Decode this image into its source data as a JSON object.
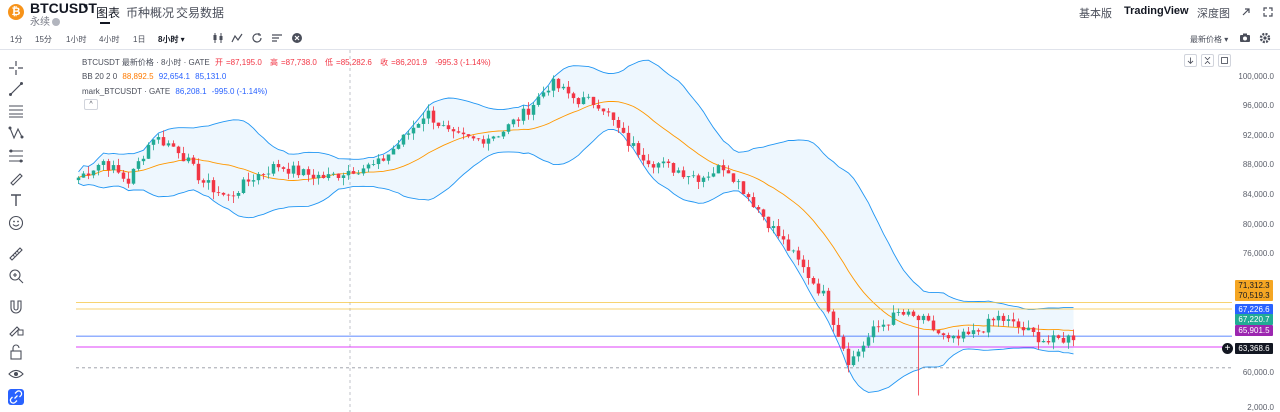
{
  "header": {
    "coin_logo_glyph": "₿",
    "symbol": "BTCUSDT",
    "symbol_caret": "▾",
    "sub_label": "永续",
    "tabs": [
      {
        "label": "图表",
        "active": true
      },
      {
        "label": "币种概况",
        "active": false
      },
      {
        "label": "交易数据",
        "active": false
      }
    ],
    "right_links": [
      {
        "label": "基本版"
      },
      {
        "label": "TradingView"
      },
      {
        "label": "深度图"
      }
    ],
    "icons": [
      "expand-icon",
      "fullscreen-icon"
    ]
  },
  "toolbar": {
    "timeframes": [
      "1分",
      "15分",
      "1小时",
      "4小时",
      "1日"
    ],
    "active_timeframe": "8小时",
    "icons": [
      "candle-type-icon",
      "indicators-icon",
      "replay-icon",
      "template-icon",
      "close-circle-icon"
    ],
    "price_source": "最新价格",
    "right_icons": [
      "camera-icon",
      "settings-icon"
    ]
  },
  "left_tools": [
    "crosshair-icon",
    "trend-line-icon",
    "horizontal-lines-icon",
    "pattern-icon",
    "fib-icon",
    "brush-icon",
    "text-icon",
    "emoji-icon",
    "ruler-icon",
    "zoom-in-icon",
    "magnet-icon",
    "lock-drawing-icon",
    "lock-icon",
    "eye-icon",
    "link-icon"
  ],
  "legend": {
    "line1_title": "BTCUSDT 最新价格 · 8小时 · GATE",
    "open_label": "开",
    "open": "87,195.0",
    "high_label": "高",
    "high": "87,738.0",
    "low_label": "低",
    "low": "85,282.6",
    "close_label": "收",
    "close": "86,201.9",
    "change": "-995.3 (-1.14%)",
    "bb_label": "BB 20 2 0",
    "bb_basis": "88,892.5",
    "bb_upper": "92,654.1",
    "bb_lower": "85,131.0",
    "mark_label": "mark_BTCUSDT · GATE",
    "mark_value": "86,208.1",
    "mark_change": "-995.0 (-1.14%)",
    "collapse_glyph": "^"
  },
  "price_axis": {
    "ticks": [
      "100,000.0",
      "96,000.0",
      "92,000.0",
      "88,000.0",
      "84,000.0",
      "80,000.0",
      "76,000.0",
      "72,000.0",
      "68,000.0",
      "64,000.0",
      "60,000.0",
      "2,000.0"
    ]
  },
  "price_labels": [
    {
      "value": "71,312.3",
      "color": "#f5a623",
      "text_color": "#131722"
    },
    {
      "value": "70,519.3",
      "color": "#f5a623",
      "text_color": "#131722"
    },
    {
      "value": "67,226.6",
      "color": "#2962ff",
      "text_color": "#ffffff"
    },
    {
      "value": "67,220.7",
      "color": "#22ab94",
      "text_color": "#ffffff"
    },
    {
      "value": "65,901.5",
      "color": "#9c27b0",
      "text_color": "#ffffff"
    },
    {
      "value": "63,368.6",
      "color": "#131722",
      "text_color": "#ffffff"
    }
  ],
  "plus_glyph": "+",
  "chart_data": {
    "type": "candlestick",
    "symbol": "BTCUSDT",
    "interval": "8小时",
    "y_range": [
      58000,
      102000
    ],
    "indicators": [
      "BB 20 2 0"
    ],
    "colors": {
      "up": "#22ab94",
      "down": "#f23645",
      "bb_basis": "#ff9800",
      "bb_band": "#2196f3",
      "bb_fill": "rgba(33,150,243,0.08)"
    },
    "horizontal_lines": [
      {
        "price": 71312.3,
        "color": "#f5c542"
      },
      {
        "price": 70519.3,
        "color": "#f5c542"
      },
      {
        "price": 67226.6,
        "color": "#2962ff"
      },
      {
        "price": 65901.5,
        "color": "#d500f9"
      },
      {
        "price": 63368.6,
        "color": "#9598a1",
        "dashed": true
      }
    ],
    "key_closes": [
      86500,
      88500,
      86000,
      91500,
      90000,
      86000,
      84000,
      86500,
      88000,
      87000,
      86500,
      87500,
      88000,
      91000,
      94500,
      91500,
      91000,
      92000,
      94500,
      98000,
      96000,
      95500,
      91000,
      88500,
      87500,
      86500,
      88000,
      84000,
      80000,
      76000,
      72000,
      64000,
      68000,
      70000,
      69000,
      66500,
      67500,
      69500,
      68000,
      66500,
      67200
    ]
  }
}
